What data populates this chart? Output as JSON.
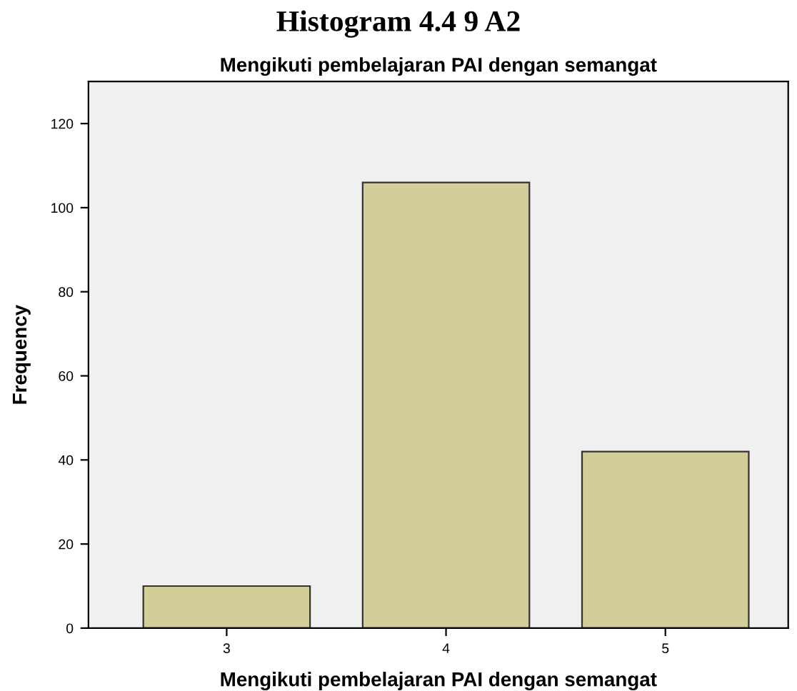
{
  "chart_data": {
    "type": "bar",
    "title": "Histogram 4.4 9 A2",
    "subtitle": "Mengikuti pembelajaran PAI dengan semangat",
    "xlabel": "Mengikuti pembelajaran PAI dengan semangat",
    "ylabel": "Frequency",
    "categories": [
      "3",
      "4",
      "5"
    ],
    "values": [
      10,
      106,
      42
    ],
    "color": "#d3ce99",
    "ylim": [
      0,
      130
    ],
    "yticks": [
      0,
      20,
      40,
      60,
      80,
      100,
      120
    ],
    "grid": false
  }
}
